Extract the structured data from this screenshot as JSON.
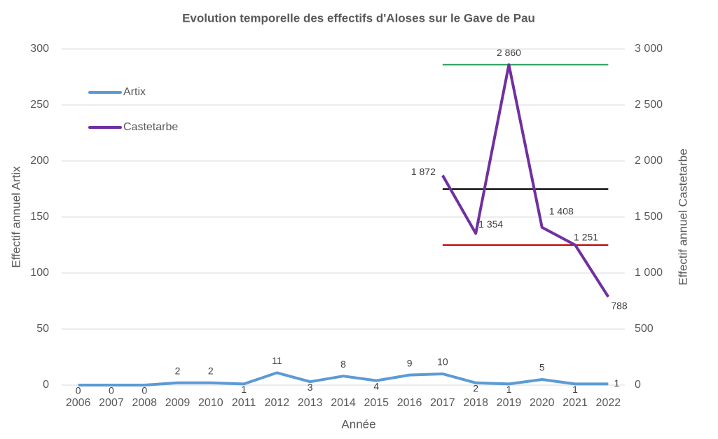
{
  "chart_data": {
    "type": "line",
    "title": "Evolution temporelle des effectifs d'Aloses sur le Gave de Pau",
    "xlabel": "Année",
    "ylabel": "Effectif annuel Artix",
    "y2label": "Effectif annuel Castetarbe",
    "categories": [
      "2006",
      "2007",
      "2008",
      "2009",
      "2010",
      "2011",
      "2012",
      "2013",
      "2014",
      "2015",
      "2016",
      "2017",
      "2018",
      "2019",
      "2020",
      "2021",
      "2022"
    ],
    "series": [
      {
        "name": "Artix",
        "color": "#5b9bd5",
        "values": [
          0,
          0,
          0,
          2,
          2,
          1,
          11,
          3,
          8,
          4,
          9,
          10,
          2,
          1,
          5,
          1,
          1
        ]
      },
      {
        "name": "Castetarbe",
        "color": "#7030a0",
        "axis": "y2",
        "values": [
          null,
          null,
          null,
          null,
          null,
          null,
          null,
          null,
          null,
          null,
          null,
          1872,
          1354,
          2860,
          1408,
          1251,
          788
        ],
        "value_labels": [
          null,
          null,
          null,
          null,
          null,
          null,
          null,
          null,
          null,
          null,
          null,
          "1 872",
          "1 354",
          "2 860",
          "1 408",
          "1 251",
          "788"
        ]
      }
    ],
    "reference_lines": [
      {
        "value": 2860,
        "color": "#1a9850",
        "axis": "y2"
      },
      {
        "value": 1750,
        "color": "#000000",
        "axis": "y2"
      },
      {
        "value": 1250,
        "color": "#c00000",
        "axis": "y2"
      }
    ],
    "ylim": [
      0,
      300
    ],
    "yticks": [
      0,
      50,
      100,
      150,
      200,
      250,
      300
    ],
    "y2lim": [
      0,
      3000
    ],
    "y2ticks": [
      0,
      500,
      {
        "value": 1000,
        "label": "1 000"
      },
      {
        "value": 1500,
        "label": "1 500"
      },
      {
        "value": 2000,
        "label": "2 000"
      },
      {
        "value": 2500,
        "label": "2 500"
      },
      {
        "value": 3000,
        "label": "3 000"
      }
    ],
    "grid": true,
    "legend": "upper left"
  }
}
